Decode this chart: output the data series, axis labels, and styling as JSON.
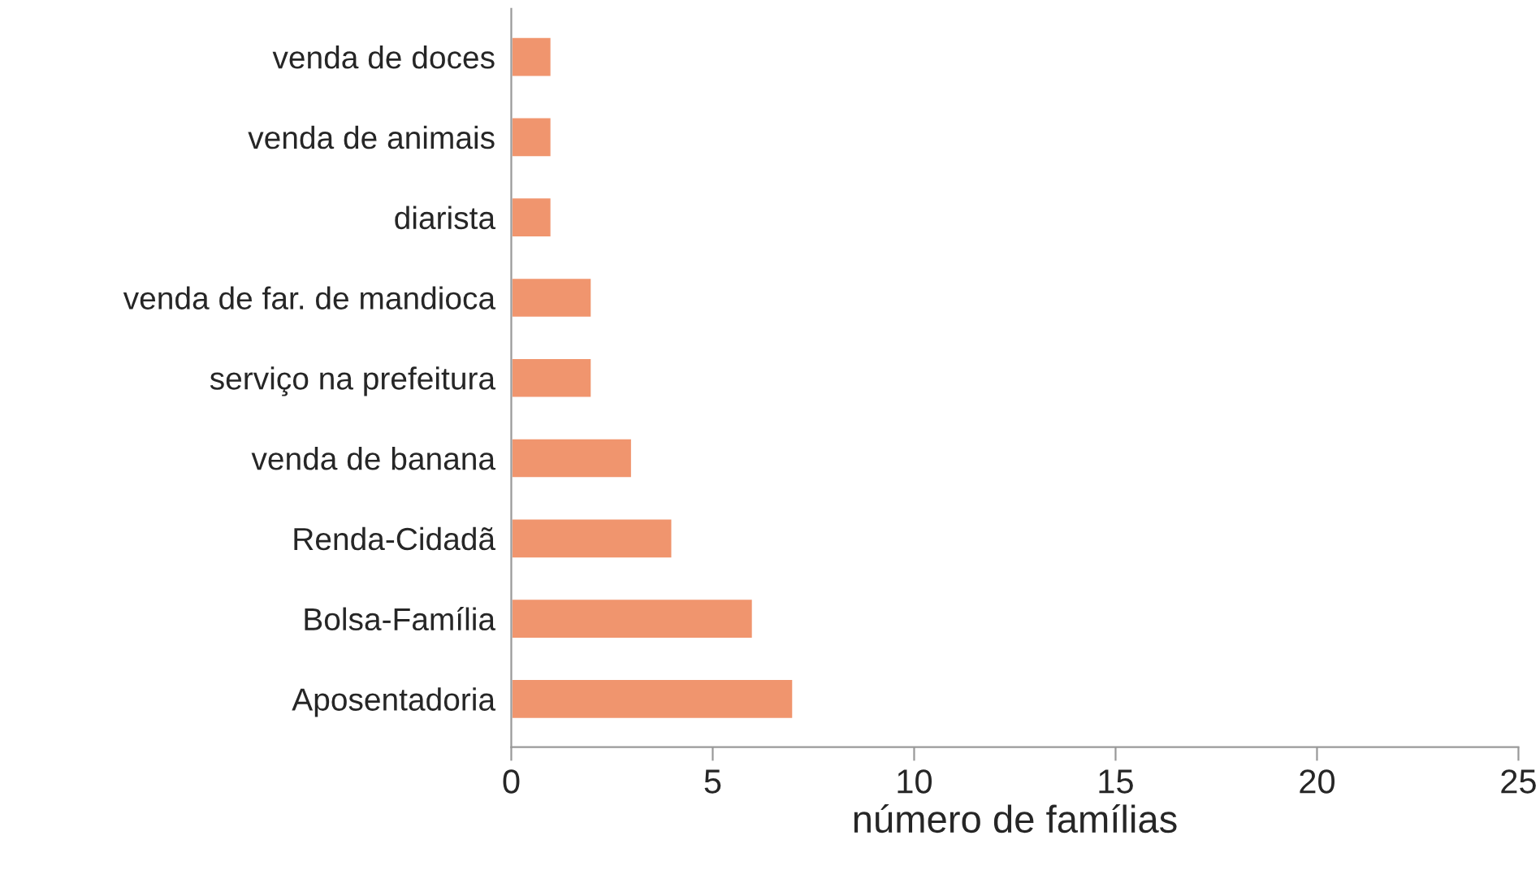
{
  "chart_data": {
    "type": "bar",
    "orientation": "horizontal",
    "xlabel": "número de famílias",
    "categories": [
      "venda de doces",
      "venda de animais",
      "diarista",
      "venda de far. de mandioca",
      "serviço na prefeitura",
      "venda de banana",
      "Renda-Cidadã",
      "Bolsa-Família",
      "Aposentadoria"
    ],
    "values": [
      1,
      1,
      1,
      2,
      2,
      3,
      4,
      6,
      7
    ],
    "color": "#f0956e",
    "xlim": [
      0,
      25
    ],
    "xticks": [
      0,
      5,
      10,
      15,
      20,
      25
    ],
    "grid": false,
    "legend": false
  }
}
